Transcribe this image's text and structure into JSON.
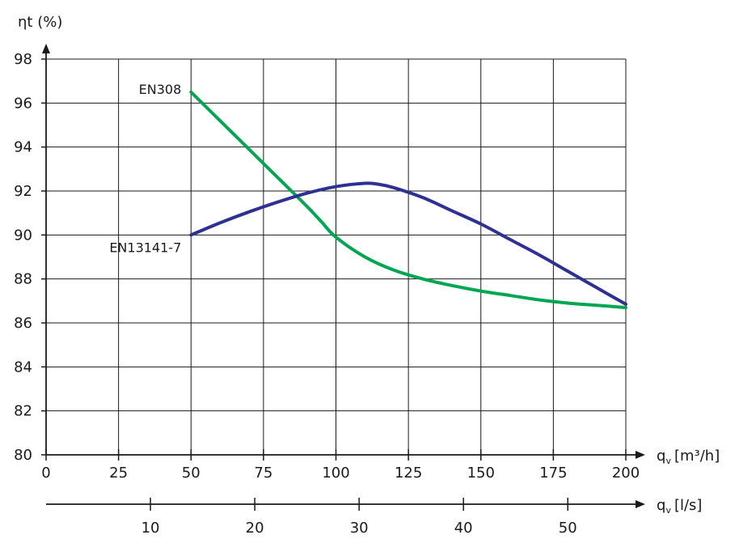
{
  "chart_data": {
    "type": "line",
    "ylabel": "ηt (%)",
    "xlabel": "q",
    "xlabel_suffix": "[m³/h]",
    "x2label": "q",
    "x2label_suffix": "[l/s]",
    "xlabel_subscript": "v",
    "ylim": [
      80,
      98
    ],
    "xlim": [
      0,
      200
    ],
    "x2lim": [
      0,
      55.56
    ],
    "yticks": [
      "80",
      "82",
      "84",
      "86",
      "88",
      "90",
      "92",
      "94",
      "96",
      "98"
    ],
    "xticks": [
      "0",
      "25",
      "50",
      "75",
      "100",
      "125",
      "150",
      "175",
      "200"
    ],
    "x2ticks": [
      "10",
      "20",
      "30",
      "40",
      "50"
    ],
    "grid": true,
    "series": [
      {
        "name": "EN308",
        "color": "#00a651",
        "x": [
          50,
          60,
          70,
          80,
          90,
          95,
          100,
          110,
          120,
          130,
          140,
          150,
          160,
          170,
          180,
          190,
          200
        ],
        "y": [
          96.5,
          95.2,
          93.9,
          92.6,
          91.3,
          90.6,
          89.9,
          89.0,
          88.4,
          88.0,
          87.7,
          87.45,
          87.25,
          87.05,
          86.9,
          86.8,
          86.7
        ]
      },
      {
        "name": "EN13141-7",
        "color": "#2e3192",
        "x": [
          50,
          60,
          70,
          80,
          90,
          100,
          110,
          115,
          120,
          130,
          140,
          150,
          160,
          170,
          180,
          190,
          200
        ],
        "y": [
          90.0,
          90.55,
          91.05,
          91.5,
          91.9,
          92.2,
          92.35,
          92.3,
          92.15,
          91.7,
          91.1,
          90.5,
          89.8,
          89.1,
          88.35,
          87.6,
          86.85
        ]
      }
    ]
  }
}
